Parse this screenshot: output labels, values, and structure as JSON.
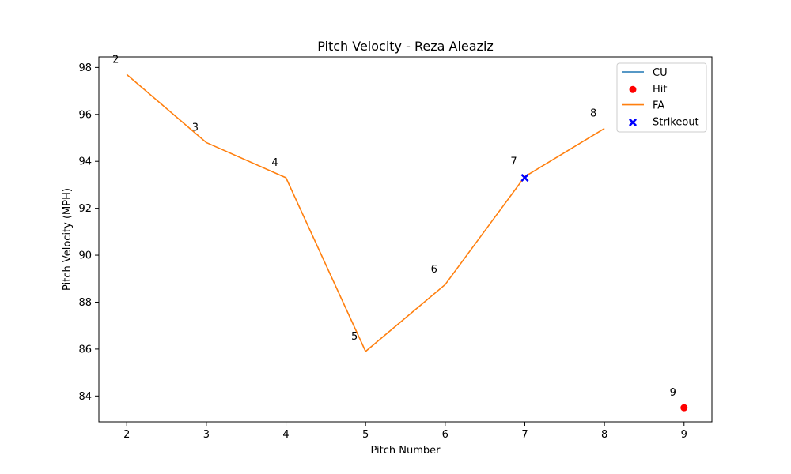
{
  "chart_data": {
    "type": "line",
    "title": "Pitch Velocity - Reza Aleaziz",
    "xlabel": "Pitch Number",
    "ylabel": "Pitch Velocity (MPH)",
    "xlim": [
      1.65,
      9.35
    ],
    "ylim": [
      82.9,
      98.45
    ],
    "x_ticks": [
      2,
      3,
      4,
      5,
      6,
      7,
      8,
      9
    ],
    "y_ticks": [
      84,
      86,
      88,
      90,
      92,
      94,
      96,
      98
    ],
    "grid": false,
    "legend_position": "top-right",
    "series": [
      {
        "name": "CU",
        "kind": "line",
        "color": "#1f77b4",
        "x": [],
        "y": []
      },
      {
        "name": "Hit",
        "kind": "marker",
        "marker": "circle",
        "color": "#ff0000",
        "x": [
          9
        ],
        "y": [
          83.5
        ]
      },
      {
        "name": "FA",
        "kind": "line",
        "color": "#ff7f0e",
        "x": [
          2,
          3,
          4,
          5,
          6,
          7,
          8
        ],
        "y": [
          97.7,
          94.8,
          93.3,
          85.9,
          88.75,
          93.35,
          95.4
        ]
      },
      {
        "name": "Strikeout",
        "kind": "marker",
        "marker": "x",
        "color": "#0000ff",
        "x": [
          7
        ],
        "y": [
          93.3
        ]
      }
    ],
    "annotations": [
      {
        "text": "2",
        "x": 2,
        "y": 97.7
      },
      {
        "text": "3",
        "x": 3,
        "y": 94.8
      },
      {
        "text": "4",
        "x": 4,
        "y": 93.3
      },
      {
        "text": "5",
        "x": 5,
        "y": 85.9
      },
      {
        "text": "6",
        "x": 6,
        "y": 88.75
      },
      {
        "text": "7",
        "x": 7,
        "y": 93.35
      },
      {
        "text": "8",
        "x": 8,
        "y": 95.4
      },
      {
        "text": "9",
        "x": 9,
        "y": 83.5
      }
    ]
  }
}
